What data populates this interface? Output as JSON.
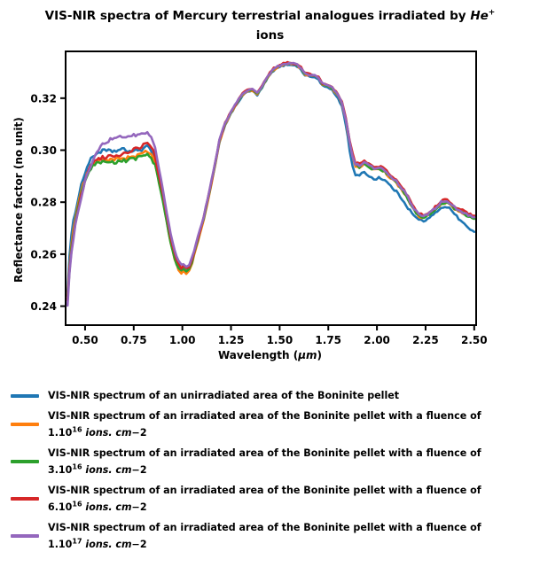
{
  "title": {
    "part1": "VIS-NIR spectra of Mercury terrestrial analogues irradiated by ",
    "element": "He",
    "charge": "+",
    "line2": "ions"
  },
  "axes": {
    "xlabel_prefix": "Wavelength (",
    "xlabel_unit": "µm",
    "xlabel_suffix": ")",
    "ylabel": "Reflectance factor (no unit)"
  },
  "legend": {
    "entries": [
      {
        "color": "#1f77b4",
        "line1": "VIS-NIR spectrum of an unirradiated area of the Boninite pellet"
      },
      {
        "color": "#ff7f0e",
        "line1": "VIS-NIR spectrum of an irradiated area of the Boninite pellet with a fluence of",
        "coeff": "1.10",
        "exp": "16",
        "unit": "ions. cm",
        "suffix": "−2"
      },
      {
        "color": "#2ca02c",
        "line1": "VIS-NIR spectrum of an irradiated area of the Boninite pellet with a fluence of",
        "coeff": "3.10",
        "exp": "16",
        "unit": "ions. cm",
        "suffix": "−2"
      },
      {
        "color": "#d62728",
        "line1": "VIS-NIR spectrum of an irradiated area of the Boninite pellet with a fluence of",
        "coeff": "6.10",
        "exp": "16",
        "unit": "ions. cm",
        "suffix": "−2"
      },
      {
        "color": "#9467bd",
        "line1": "VIS-NIR spectrum of an irradiated area of the Boninite pellet with a fluence of",
        "coeff": "1.10",
        "exp": "17",
        "unit": "ions. cm",
        "suffix": "−2"
      }
    ]
  },
  "chart_data": {
    "type": "line",
    "title": "VIS-NIR spectra of Mercury terrestrial analogues irradiated by He+ ions",
    "xlabel": "Wavelength (µm)",
    "ylabel": "Reflectance factor (no unit)",
    "xlim": [
      0.4,
      2.51
    ],
    "ylim": [
      0.2327,
      0.338
    ],
    "grid": false,
    "legend_position": "below",
    "xticks": [
      0.5,
      0.75,
      1.0,
      1.25,
      1.5,
      1.75,
      2.0,
      2.25,
      2.5
    ],
    "xticklabels": [
      "0.50",
      "0.75",
      "1.00",
      "1.25",
      "1.50",
      "1.75",
      "2.00",
      "2.25",
      "2.50"
    ],
    "yticks": [
      0.24,
      0.26,
      0.28,
      0.3,
      0.32
    ],
    "yticklabels": [
      "0.24",
      "0.26",
      "0.28",
      "0.30",
      "0.32"
    ],
    "x": [
      0.41,
      0.42,
      0.43,
      0.44,
      0.45,
      0.46,
      0.47,
      0.48,
      0.49,
      0.5,
      0.52,
      0.54,
      0.56,
      0.58,
      0.6,
      0.63,
      0.66,
      0.69,
      0.72,
      0.75,
      0.78,
      0.8,
      0.82,
      0.84,
      0.86,
      0.88,
      0.9,
      0.92,
      0.94,
      0.96,
      0.98,
      0.995,
      1.005,
      1.02,
      1.035,
      1.05,
      1.08,
      1.11,
      1.14,
      1.17,
      1.19,
      1.22,
      1.25,
      1.28,
      1.31,
      1.335,
      1.36,
      1.385,
      1.41,
      1.44,
      1.47,
      1.5,
      1.53,
      1.56,
      1.59,
      1.61,
      1.63,
      1.655,
      1.68,
      1.7,
      1.72,
      1.745,
      1.77,
      1.8,
      1.82,
      1.84,
      1.86,
      1.875,
      1.89,
      1.91,
      1.935,
      1.96,
      1.985,
      2.01,
      2.04,
      2.07,
      2.1,
      2.13,
      2.16,
      2.19,
      2.215,
      2.24,
      2.27,
      2.3,
      2.33,
      2.36,
      2.385,
      2.41,
      2.44,
      2.47,
      2.5
    ],
    "series": [
      {
        "name": "unirradiated",
        "color": "#1f77b4",
        "label": "VIS-NIR spectrum of an unirradiated area of the Boninite pellet",
        "values": [
          0.2455,
          0.259,
          0.267,
          0.2725,
          0.2765,
          0.28,
          0.2835,
          0.2865,
          0.289,
          0.2915,
          0.2952,
          0.2975,
          0.2988,
          0.2995,
          0.2998,
          0.2995,
          0.2998,
          0.3002,
          0.2998,
          0.2995,
          0.3002,
          0.3005,
          0.3012,
          0.3002,
          0.2962,
          0.2895,
          0.282,
          0.2735,
          0.2658,
          0.2592,
          0.2552,
          0.2538,
          0.2547,
          0.2536,
          0.2544,
          0.2572,
          0.2655,
          0.2735,
          0.2838,
          0.2948,
          0.303,
          0.3098,
          0.314,
          0.3178,
          0.321,
          0.3225,
          0.3228,
          0.3212,
          0.324,
          0.328,
          0.3307,
          0.332,
          0.3328,
          0.333,
          0.3322,
          0.331,
          0.3288,
          0.3283,
          0.328,
          0.3272,
          0.3248,
          0.3242,
          0.323,
          0.32,
          0.3168,
          0.31,
          0.3,
          0.294,
          0.2905,
          0.29,
          0.2918,
          0.29,
          0.2888,
          0.2895,
          0.2885,
          0.2862,
          0.284,
          0.2812,
          0.2778,
          0.2748,
          0.2732,
          0.2728,
          0.2738,
          0.2758,
          0.278,
          0.2783,
          0.2768,
          0.2745,
          0.2722,
          0.27,
          0.2686
        ]
      },
      {
        "name": "fluence-1e16",
        "color": "#ff7f0e",
        "label": "VIS-NIR spectrum of an irradiated area of the Boninite pellet with a fluence of 1.10^16 ions.cm-2",
        "values": [
          0.2435,
          0.2555,
          0.2635,
          0.2695,
          0.2738,
          0.2775,
          0.2808,
          0.284,
          0.2865,
          0.2888,
          0.2925,
          0.2948,
          0.2958,
          0.2962,
          0.2962,
          0.2962,
          0.2965,
          0.2968,
          0.2972,
          0.2975,
          0.2982,
          0.2988,
          0.2995,
          0.2985,
          0.2948,
          0.2882,
          0.2808,
          0.2722,
          0.2645,
          0.258,
          0.254,
          0.2528,
          0.2536,
          0.2524,
          0.2534,
          0.2565,
          0.265,
          0.2732,
          0.2836,
          0.2946,
          0.303,
          0.3098,
          0.3142,
          0.318,
          0.3213,
          0.3227,
          0.323,
          0.3215,
          0.3243,
          0.3283,
          0.331,
          0.3323,
          0.3331,
          0.3333,
          0.3325,
          0.3313,
          0.3292,
          0.3287,
          0.3285,
          0.3277,
          0.3253,
          0.3247,
          0.3236,
          0.3209,
          0.3178,
          0.3116,
          0.3028,
          0.2972,
          0.294,
          0.2934,
          0.295,
          0.2933,
          0.2923,
          0.2926,
          0.2916,
          0.2893,
          0.2872,
          0.2845,
          0.281,
          0.277,
          0.2746,
          0.2741,
          0.2751,
          0.2771,
          0.2794,
          0.2798,
          0.2783,
          0.2766,
          0.2756,
          0.2746,
          0.274
        ]
      },
      {
        "name": "fluence-3e16",
        "color": "#2ca02c",
        "label": "VIS-NIR spectrum of an irradiated area of the Boninite pellet with a fluence of 3.10^16 ions.cm-2",
        "values": [
          0.2428,
          0.2542,
          0.262,
          0.268,
          0.2724,
          0.2762,
          0.2795,
          0.2828,
          0.2855,
          0.2878,
          0.2915,
          0.2938,
          0.2948,
          0.2952,
          0.2952,
          0.2952,
          0.2955,
          0.2958,
          0.2962,
          0.2965,
          0.2972,
          0.2978,
          0.2985,
          0.2975,
          0.294,
          0.2876,
          0.2804,
          0.272,
          0.2645,
          0.2582,
          0.2545,
          0.2535,
          0.2544,
          0.2533,
          0.2542,
          0.2572,
          0.2656,
          0.2738,
          0.2841,
          0.2951,
          0.3034,
          0.3102,
          0.3145,
          0.3182,
          0.3215,
          0.3229,
          0.3232,
          0.3217,
          0.3245,
          0.3285,
          0.3312,
          0.3325,
          0.3333,
          0.3335,
          0.3327,
          0.3315,
          0.3294,
          0.3289,
          0.3287,
          0.3279,
          0.3255,
          0.3249,
          0.3238,
          0.3211,
          0.318,
          0.3118,
          0.303,
          0.2974,
          0.2942,
          0.2936,
          0.2952,
          0.2935,
          0.2925,
          0.2928,
          0.2918,
          0.2895,
          0.2874,
          0.2847,
          0.2812,
          0.2772,
          0.2748,
          0.2743,
          0.2753,
          0.2773,
          0.2796,
          0.28,
          0.2785,
          0.2768,
          0.2757,
          0.2744,
          0.2736
        ]
      },
      {
        "name": "fluence-6e16",
        "color": "#d62728",
        "label": "VIS-NIR spectrum of an irradiated area of the Boninite pellet with a fluence of 6.10^16 ions.cm-2",
        "values": [
          0.2425,
          0.2535,
          0.261,
          0.267,
          0.2715,
          0.2755,
          0.279,
          0.2825,
          0.2855,
          0.288,
          0.2925,
          0.2955,
          0.2965,
          0.297,
          0.2972,
          0.2975,
          0.298,
          0.2985,
          0.2992,
          0.3,
          0.301,
          0.3018,
          0.3028,
          0.3015,
          0.2975,
          0.2905,
          0.283,
          0.2745,
          0.2668,
          0.2603,
          0.2562,
          0.2548,
          0.2556,
          0.2545,
          0.2552,
          0.258,
          0.2662,
          0.2742,
          0.2845,
          0.2955,
          0.3038,
          0.3105,
          0.3148,
          0.3185,
          0.3218,
          0.3232,
          0.3235,
          0.322,
          0.3248,
          0.3288,
          0.3315,
          0.3328,
          0.3336,
          0.3338,
          0.333,
          0.3318,
          0.3297,
          0.3292,
          0.329,
          0.3282,
          0.3258,
          0.3252,
          0.3242,
          0.3215,
          0.3185,
          0.3125,
          0.304,
          0.2985,
          0.2952,
          0.2945,
          0.2962,
          0.2945,
          0.2935,
          0.2938,
          0.2928,
          0.2905,
          0.2885,
          0.2858,
          0.2822,
          0.2782,
          0.2757,
          0.2752,
          0.2762,
          0.2782,
          0.2806,
          0.281,
          0.2795,
          0.2778,
          0.2768,
          0.2756,
          0.2748
        ]
      },
      {
        "name": "fluence-1e17",
        "color": "#9467bd",
        "label": "VIS-NIR spectrum of an irradiated area of the Boninite pellet with a fluence of 1.10^17 ions.cm-2",
        "values": [
          0.2405,
          0.2522,
          0.2602,
          0.2662,
          0.2708,
          0.2748,
          0.2785,
          0.282,
          0.285,
          0.2878,
          0.2925,
          0.2962,
          0.2992,
          0.3012,
          0.3028,
          0.3042,
          0.3048,
          0.3052,
          0.3055,
          0.3058,
          0.306,
          0.3062,
          0.3068,
          0.3052,
          0.3005,
          0.293,
          0.2848,
          0.2758,
          0.2678,
          0.2612,
          0.2572,
          0.2558,
          0.2565,
          0.2553,
          0.256,
          0.2588,
          0.2668,
          0.2746,
          0.2848,
          0.2957,
          0.3039,
          0.3106,
          0.3148,
          0.3185,
          0.3217,
          0.3231,
          0.3234,
          0.3219,
          0.3246,
          0.3286,
          0.3313,
          0.3326,
          0.3334,
          0.3336,
          0.3328,
          0.3316,
          0.3295,
          0.329,
          0.3288,
          0.328,
          0.3256,
          0.325,
          0.324,
          0.3213,
          0.3182,
          0.3121,
          0.3034,
          0.2978,
          0.2947,
          0.2941,
          0.2957,
          0.294,
          0.293,
          0.2933,
          0.2923,
          0.29,
          0.288,
          0.2853,
          0.2817,
          0.2777,
          0.2753,
          0.2748,
          0.2758,
          0.2778,
          0.2801,
          0.2805,
          0.279,
          0.2773,
          0.2762,
          0.275,
          0.2742
        ]
      }
    ]
  }
}
